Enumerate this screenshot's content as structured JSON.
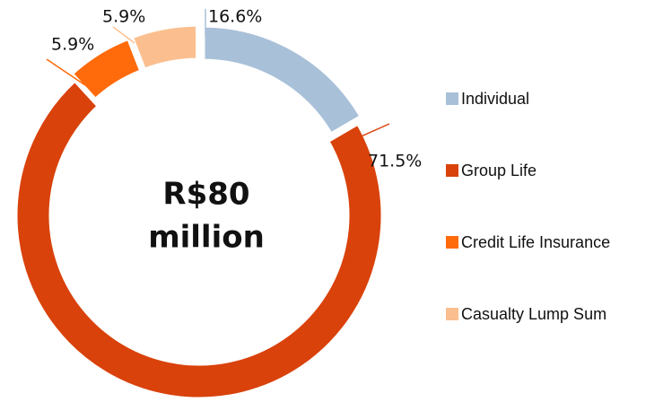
{
  "chart_data": {
    "type": "donut",
    "center_label": [
      "R$80",
      "million"
    ],
    "categories": [
      "Individual",
      "Group Life",
      "Credit Life Insurance",
      "Casualty Lump Sum"
    ],
    "values": [
      16.6,
      71.5,
      5.9,
      5.9
    ],
    "value_labels": [
      "16.6%",
      "71.5%",
      "5.9%",
      "5.9%"
    ],
    "colors": [
      "#a9c0d9",
      "#d9420b",
      "#ff6a0a",
      "#fbbf8f"
    ],
    "legend": "right"
  }
}
